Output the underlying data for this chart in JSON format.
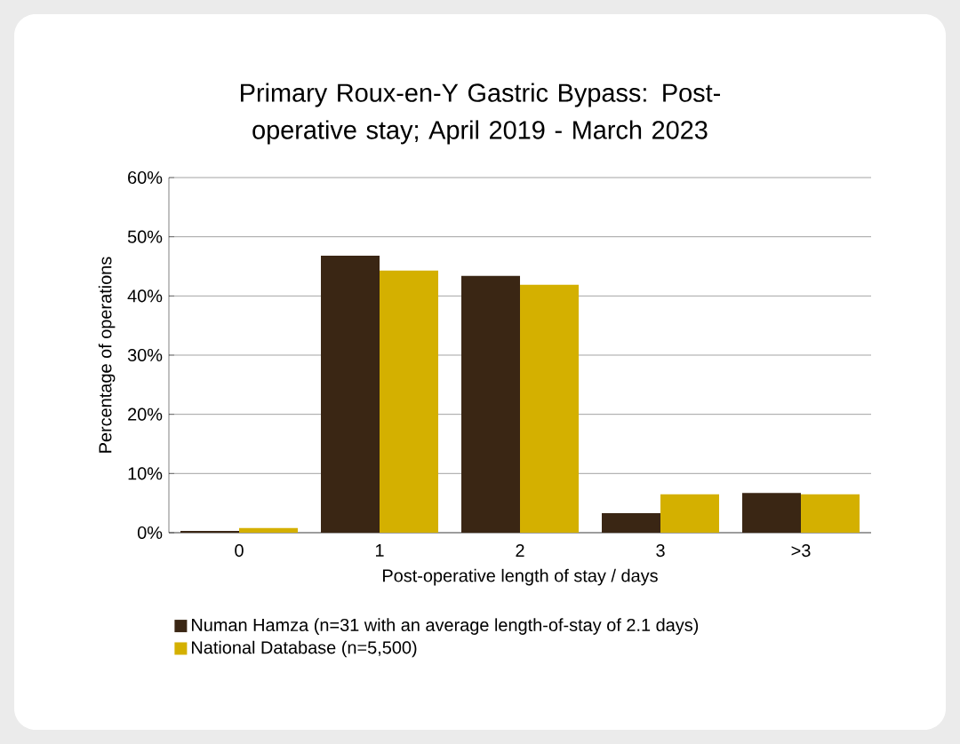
{
  "chart_data": {
    "type": "bar",
    "title": "Primary Roux-en-Y Gastric Bypass: Post-operative stay; April 2019 - March 2023",
    "xlabel": "Post-operative length of stay / days",
    "ylabel": "Percentage of operations",
    "categories": [
      "0",
      "1",
      "2",
      "3",
      ">3"
    ],
    "series": [
      {
        "name": "Numan Hamza (n=31 with an average length-of-stay of 2.1 days)",
        "color": "#3a2614",
        "values": [
          0.3,
          46.8,
          43.4,
          3.3,
          6.7
        ]
      },
      {
        "name": "National Database (n=5,500)",
        "color": "#d4b000",
        "values": [
          0.8,
          44.3,
          41.9,
          6.5,
          6.5
        ]
      }
    ],
    "ylim": [
      0,
      60
    ],
    "yticks": [
      {
        "value": 0,
        "label": "0%"
      },
      {
        "value": 10,
        "label": "10%"
      },
      {
        "value": 20,
        "label": "20%"
      },
      {
        "value": 30,
        "label": "30%"
      },
      {
        "value": 40,
        "label": "40%"
      },
      {
        "value": 50,
        "label": "50%"
      },
      {
        "value": 60,
        "label": "60%"
      }
    ],
    "grid": "y",
    "legend": "bottom"
  }
}
